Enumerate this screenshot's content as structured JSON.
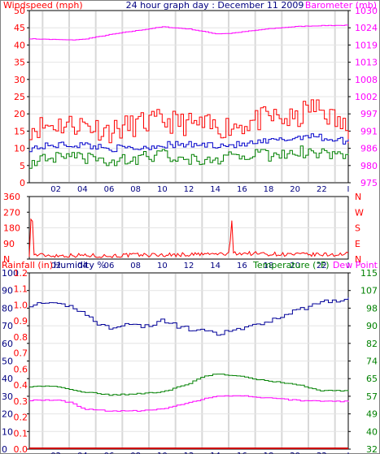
{
  "chart_data": [
    {
      "type": "line",
      "title": "24 hour graph day : December 11 2009",
      "left_axis_label": "Windspeed (mph)",
      "right_axis_label": "Barometer (mb)",
      "x_ticks": [
        "02",
        "04",
        "06",
        "08",
        "10",
        "12",
        "14",
        "16",
        "18",
        "20",
        "22",
        "I"
      ],
      "left_ticks": [
        "0",
        "5",
        "10",
        "15",
        "20",
        "25",
        "30",
        "35",
        "40",
        "45",
        "50"
      ],
      "right_ticks": [
        "975",
        "980",
        "986",
        "991",
        "997",
        "1002",
        "1008",
        "1013",
        "1019",
        "1024",
        "1030"
      ],
      "ylim_left": [
        0,
        50
      ],
      "ylim_right": [
        975,
        1030
      ],
      "grid": true,
      "series": [
        {
          "key": "wind_gust",
          "axis": "left",
          "color": "#ff0000",
          "x": [
            0,
            2,
            4,
            6,
            8,
            10,
            12,
            14,
            16,
            18,
            20,
            21,
            22,
            24
          ],
          "y": [
            16,
            17,
            17,
            15,
            17,
            18,
            17,
            16,
            17,
            19,
            18,
            22,
            21,
            15
          ]
        },
        {
          "key": "wind_avg",
          "axis": "left",
          "color": "#0000cc",
          "x": [
            0,
            2,
            4,
            6,
            8,
            10,
            12,
            14,
            16,
            18,
            20,
            21,
            22,
            24
          ],
          "y": [
            10,
            11,
            11,
            10,
            10,
            11,
            11,
            11,
            11,
            12,
            13,
            14,
            13,
            12
          ]
        },
        {
          "key": "wind_low",
          "axis": "left",
          "color": "#008000",
          "x": [
            0,
            2,
            4,
            6,
            8,
            10,
            12,
            14,
            16,
            18,
            20,
            21,
            22,
            24
          ],
          "y": [
            6,
            7,
            7,
            6,
            7,
            8,
            7,
            7,
            8,
            8,
            9,
            9,
            9,
            8
          ]
        },
        {
          "key": "barometer",
          "axis": "right",
          "color": "#ff00ff",
          "x": [
            0,
            3,
            4,
            6,
            8,
            10,
            12,
            14,
            15,
            18,
            20,
            22,
            24
          ],
          "y": [
            1021,
            1020.6,
            1020.8,
            1022.3,
            1023.6,
            1024.8,
            1024.1,
            1022.6,
            1022.7,
            1024.2,
            1024.9,
            1025.2,
            1025.3
          ]
        }
      ]
    },
    {
      "type": "line",
      "left_ticks": [
        "N",
        "90",
        "180",
        "270",
        "360"
      ],
      "right_ticks": [
        "N",
        "E",
        "S",
        "W",
        "N"
      ],
      "ylim": [
        0,
        360
      ],
      "grid": true,
      "series": [
        {
          "key": "wind_direction",
          "color": "#ff0000",
          "x": [
            0,
            0.2,
            0.3,
            2,
            4,
            6,
            8,
            10,
            12,
            13,
            15.1,
            15.2,
            15.3,
            18,
            20,
            22,
            24
          ],
          "y": [
            25,
            355,
            25,
            20,
            22,
            18,
            24,
            24,
            26,
            28,
            30,
            355,
            35,
            30,
            26,
            25,
            28
          ]
        }
      ]
    },
    {
      "type": "line",
      "left_label_1": "Rainfall (in)",
      "left_label_2": "Humidity %",
      "right_label_1": "Temperature (°F)",
      "right_label_2": "Dew Point",
      "humidity_ticks": [
        "0",
        "10",
        "20",
        "30",
        "40",
        "50",
        "60",
        "70",
        "80",
        "90",
        "100"
      ],
      "rain_ticks": [
        "0.0",
        "0.1",
        "0.2",
        "0.3",
        "0.4",
        "0.6",
        "0.7",
        "0.8",
        "0.9",
        "1.0",
        "1.1",
        "1.2"
      ],
      "temp_ticks": [
        "32",
        "40",
        "49",
        "57",
        "65",
        "74",
        "82",
        "90",
        "98",
        "107",
        "115"
      ],
      "ylim_humidity": [
        0,
        100
      ],
      "ylim_temp": [
        32,
        115
      ],
      "grid": true,
      "series": [
        {
          "key": "humidity",
          "color": "#000099",
          "x": [
            0,
            2,
            3,
            4,
            5,
            6,
            7,
            8,
            9,
            10,
            11,
            12,
            13,
            14,
            15,
            17,
            19,
            21,
            22,
            24
          ],
          "y": [
            82,
            82,
            81,
            78,
            71,
            69,
            71,
            70,
            70,
            73,
            70,
            68,
            67,
            65,
            67,
            70,
            76,
            81,
            84,
            85
          ]
        },
        {
          "key": "temperature",
          "color": "#008000",
          "x": [
            0,
            2,
            4,
            6,
            8,
            10,
            12,
            13,
            14,
            16,
            18,
            20,
            22,
            24
          ],
          "y": [
            61.5,
            61.5,
            59,
            57.5,
            58,
            59,
            63,
            66,
            67.5,
            66,
            64,
            62.5,
            59.5,
            59.5
          ]
        },
        {
          "key": "dew_point",
          "color": "#ff00ff",
          "x": [
            0,
            2,
            3,
            4,
            6,
            8,
            10,
            12,
            14,
            16,
            18,
            20,
            22,
            24
          ],
          "y": [
            55,
            55,
            54,
            51,
            50,
            50,
            51,
            54,
            57,
            57,
            56,
            55,
            54.5,
            54.5
          ]
        },
        {
          "key": "rainfall",
          "color": "#cc0000",
          "x": [
            0,
            24
          ],
          "y": [
            0,
            0
          ]
        }
      ]
    }
  ]
}
